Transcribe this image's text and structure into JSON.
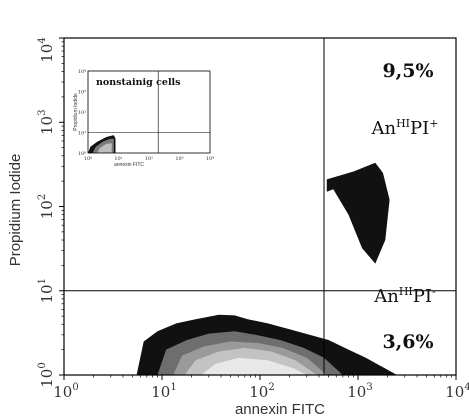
{
  "chart_data": {
    "type": "scatter",
    "title": "",
    "xlabel": "annexin FITC",
    "ylabel": "Propidium Iodide",
    "xscale": "log",
    "yscale": "log",
    "xlim": [
      1,
      10000
    ],
    "ylim": [
      1,
      10000
    ],
    "x_ticks": [
      {
        "base": "10",
        "exp": "0"
      },
      {
        "base": "10",
        "exp": "1"
      },
      {
        "base": "10",
        "exp": "2"
      },
      {
        "base": "10",
        "exp": "3"
      },
      {
        "base": "10",
        "exp": "4"
      }
    ],
    "y_ticks": [
      {
        "base": "10",
        "exp": "0"
      },
      {
        "base": "10",
        "exp": "1"
      },
      {
        "base": "10",
        "exp": "2"
      },
      {
        "base": "10",
        "exp": "3"
      },
      {
        "base": "10",
        "exp": "4"
      }
    ],
    "gates": {
      "x": 450,
      "y": 10
    },
    "quadrants": [
      {
        "position": "upper-right",
        "percent": "9,5%",
        "label_base": "An",
        "label_sup1": "HI",
        "label_mid": "PI",
        "label_sup2": "+"
      },
      {
        "position": "lower-right",
        "percent": "3,6%",
        "label_base": "An",
        "label_sup1": "HI",
        "label_mid": "PI",
        "label_sup2": "-"
      }
    ],
    "populations": [
      {
        "description": "main cell population density contours",
        "levels": [
          {
            "color": "#111111",
            "points": [
              [
                5.5,
                1
              ],
              [
                6.5,
                2.5
              ],
              [
                9,
                3.3
              ],
              [
                14,
                4.1
              ],
              [
                22,
                4.6
              ],
              [
                38,
                5.2
              ],
              [
                55,
                5.1
              ],
              [
                75,
                4.6
              ],
              [
                120,
                4.1
              ],
              [
                200,
                3.5
              ],
              [
                320,
                3.0
              ],
              [
                500,
                2.6
              ],
              [
                800,
                2.0
              ],
              [
                1200,
                1.6
              ],
              [
                2500,
                1
              ]
            ]
          },
          {
            "color": "#6e6e6e",
            "points": [
              [
                9,
                1
              ],
              [
                11,
                2.0
              ],
              [
                18,
                2.6
              ],
              [
                30,
                3.1
              ],
              [
                55,
                3.3
              ],
              [
                90,
                3.0
              ],
              [
                160,
                2.6
              ],
              [
                280,
                2.1
              ],
              [
                450,
                1.6
              ],
              [
                700,
                1
              ]
            ]
          },
          {
            "color": "#9a9a9a",
            "points": [
              [
                13,
                1
              ],
              [
                16,
                1.7
              ],
              [
                27,
                2.2
              ],
              [
                50,
                2.5
              ],
              [
                95,
                2.4
              ],
              [
                170,
                2.1
              ],
              [
                300,
                1.6
              ],
              [
                480,
                1
              ]
            ]
          },
          {
            "color": "#c3c3c3",
            "points": [
              [
                17,
                1
              ],
              [
                22,
                1.5
              ],
              [
                38,
                1.9
              ],
              [
                70,
                2.1
              ],
              [
                130,
                1.9
              ],
              [
                230,
                1.5
              ],
              [
                380,
                1
              ]
            ]
          },
          {
            "color": "#e8e8e8",
            "points": [
              [
                25,
                1
              ],
              [
                35,
                1.35
              ],
              [
                60,
                1.6
              ],
              [
                120,
                1.5
              ],
              [
                220,
                1.2
              ],
              [
                300,
                1
              ]
            ]
          }
        ]
      },
      {
        "description": "annexin-high PI-positive population",
        "levels": [
          {
            "color": "#111111",
            "points": [
              [
                480,
                210
              ],
              [
                900,
                260
              ],
              [
                1500,
                330
              ],
              [
                1800,
                250
              ],
              [
                2100,
                120
              ],
              [
                1900,
                40
              ],
              [
                1500,
                21
              ],
              [
                1100,
                32
              ],
              [
                800,
                80
              ],
              [
                560,
                160
              ],
              [
                480,
                150
              ]
            ]
          }
        ]
      }
    ],
    "inset": {
      "title": "nonstainig cells",
      "xlabel": "annexin FITC",
      "ylabel": "Propidium Iodide",
      "x_ticks": [
        "10⁰",
        "10¹",
        "10²",
        "10³",
        "10⁴"
      ],
      "y_ticks": [
        "10⁰",
        "10¹",
        "10²",
        "10³",
        "10⁴"
      ],
      "gates": {
        "x": 200,
        "y": 10
      },
      "levels": [
        {
          "color": "#111111",
          "points": [
            [
              1,
              1
            ],
            [
              1.2,
              2
            ],
            [
              2,
              3.5
            ],
            [
              4,
              6
            ],
            [
              7,
              7.5
            ],
            [
              8,
              5
            ],
            [
              8,
              1
            ]
          ]
        },
        {
          "color": "#7a7a7a",
          "points": [
            [
              1.4,
              1
            ],
            [
              1.8,
              2
            ],
            [
              3,
              3.5
            ],
            [
              5,
              4.8
            ],
            [
              7,
              5
            ],
            [
              7,
              1
            ]
          ]
        },
        {
          "color": "#bdbdbd",
          "points": [
            [
              2,
              1
            ],
            [
              2.5,
              1.8
            ],
            [
              4,
              2.8
            ],
            [
              6,
              3
            ],
            [
              6,
              1
            ]
          ]
        }
      ]
    }
  }
}
